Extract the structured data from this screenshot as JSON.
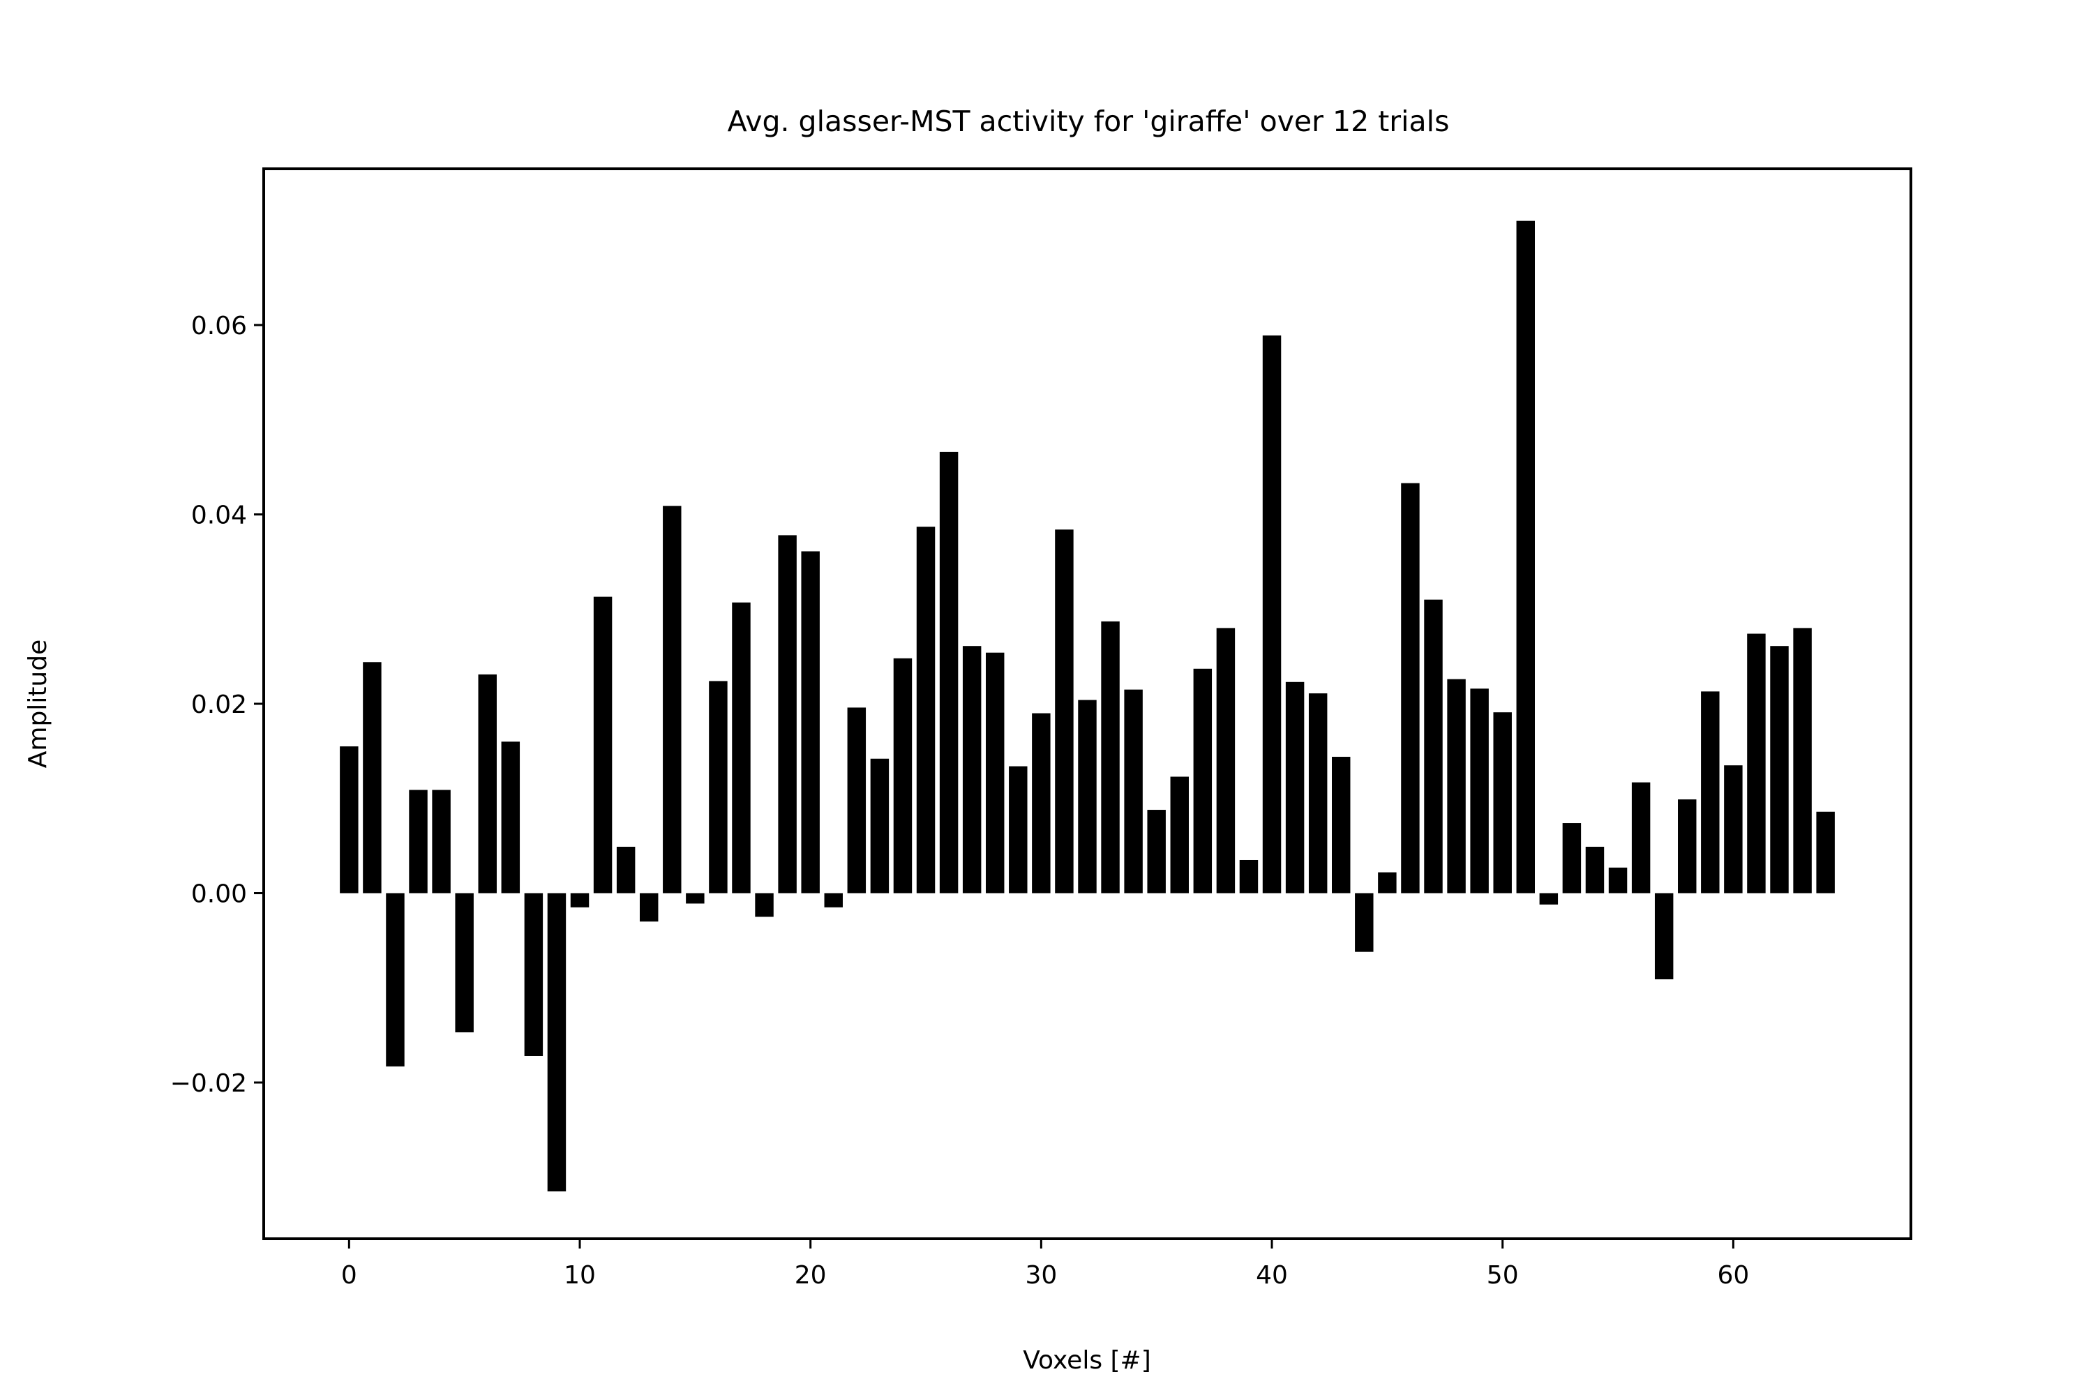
{
  "chart_data": {
    "type": "bar",
    "title": "Avg. glasser-MST activity for 'giraffe' over 12 trials",
    "xlabel": "Voxels [#]",
    "ylabel": "Amplitude",
    "xlim": [
      -3.7,
      67.7
    ],
    "ylim": [
      -0.0365,
      0.0765
    ],
    "x_ticks": [
      0,
      10,
      20,
      30,
      40,
      50,
      60
    ],
    "y_ticks": [
      -0.02,
      0.0,
      0.02,
      0.04,
      0.06
    ],
    "x_tick_labels": [
      "0",
      "10",
      "20",
      "30",
      "40",
      "50",
      "60"
    ],
    "y_tick_labels": [
      "−0.02",
      "0.00",
      "0.02",
      "0.04",
      "0.06"
    ],
    "grid": false,
    "legend": "none",
    "bar_color": "#000000",
    "x": [
      0,
      1,
      2,
      3,
      4,
      5,
      6,
      7,
      8,
      9,
      10,
      11,
      12,
      13,
      14,
      15,
      16,
      17,
      18,
      19,
      20,
      21,
      22,
      23,
      24,
      25,
      26,
      27,
      28,
      29,
      30,
      31,
      32,
      33,
      34,
      35,
      36,
      37,
      38,
      39,
      40,
      41,
      42,
      43,
      44,
      45,
      46,
      47,
      48,
      49,
      50,
      51,
      52,
      53,
      54,
      55,
      56,
      57,
      58,
      59,
      60,
      61,
      62,
      63,
      64
    ],
    "values": [
      0.0155,
      0.0244,
      -0.0183,
      0.0109,
      0.0109,
      -0.0147,
      0.0231,
      0.016,
      -0.0172,
      -0.0315,
      -0.0015,
      0.0313,
      0.0049,
      -0.003,
      0.0409,
      -0.0011,
      0.0224,
      0.0307,
      -0.0025,
      0.0378,
      0.0361,
      -0.0015,
      0.0196,
      0.0142,
      0.0248,
      0.0387,
      0.0466,
      0.0261,
      0.0254,
      0.0134,
      0.019,
      0.0384,
      0.0204,
      0.0287,
      0.0215,
      0.0088,
      0.0123,
      0.0237,
      0.028,
      0.0035,
      0.0589,
      0.0223,
      0.0211,
      0.0144,
      -0.0062,
      0.0022,
      0.0433,
      0.031,
      0.0226,
      0.0216,
      0.0191,
      0.071,
      -0.0012,
      0.0074,
      0.0049,
      0.0027,
      0.0117,
      -0.0091,
      0.0099,
      0.0213,
      0.0135,
      0.0274,
      0.0261,
      0.028,
      0.0086
    ]
  }
}
